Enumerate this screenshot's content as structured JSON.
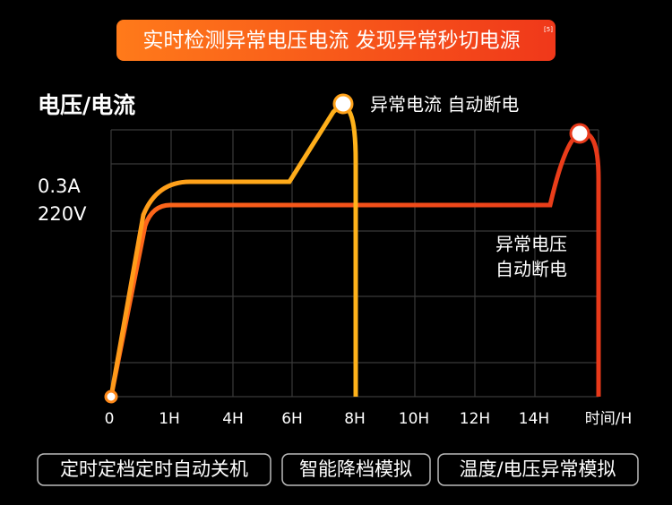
{
  "banner": {
    "title": "实时检测异常电压电流 发现异常秒切电源",
    "footnote": "[5]"
  },
  "chart": {
    "y_label": "电压/电流",
    "y_values": [
      "0.3A",
      "220V"
    ],
    "x_ticks": [
      "0",
      "1H",
      "4H",
      "6H",
      "8H",
      "10H",
      "12H",
      "14H"
    ],
    "x_label": "时间/H",
    "current_annotation": "异常电流 自动断电",
    "voltage_annotation": [
      "异常电压",
      "自动断电"
    ]
  },
  "buttons": [
    "定时定档定时自动关机",
    "智能降档模拟",
    "温度/电压异常模拟"
  ]
}
